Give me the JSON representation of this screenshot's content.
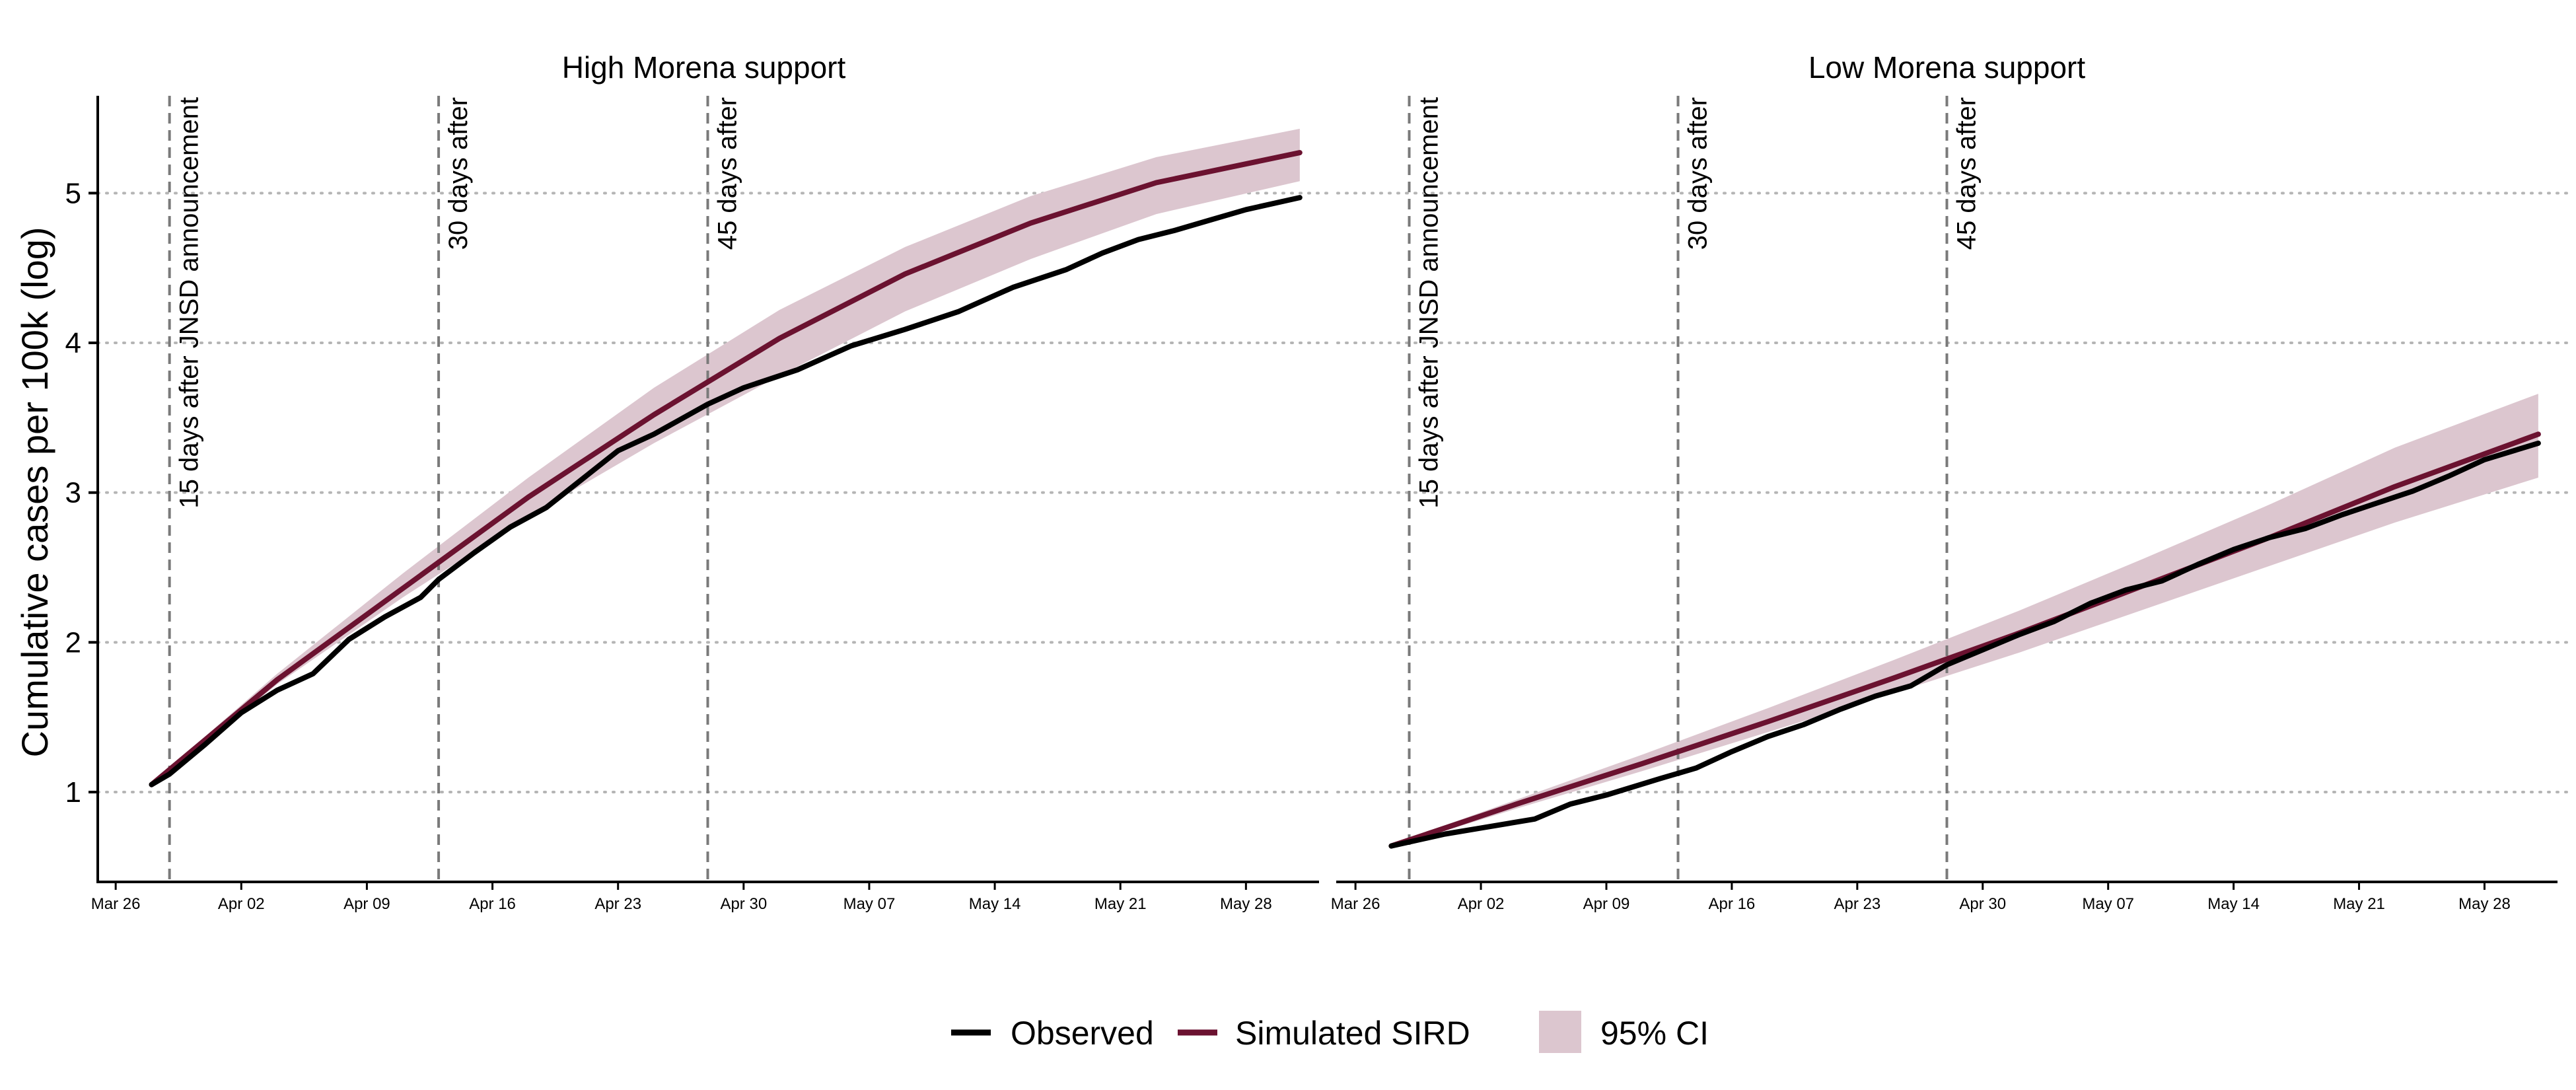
{
  "chart_data": {
    "type": "line",
    "ylabel": "Cumulative cases per 100k (log)",
    "y_scale": "log",
    "y_ticks": [
      "1",
      "2",
      "3",
      "4",
      "5"
    ],
    "ylim": [
      0.4,
      5.65
    ],
    "x_ticks": [
      "Mar 26",
      "Apr 02",
      "Apr 09",
      "Apr 16",
      "Apr 23",
      "Apr 30",
      "May 07",
      "May 14",
      "May 21",
      "May 28"
    ],
    "xlim": [
      "2020-03-25",
      "2020-06-01"
    ],
    "grid": "horizontal dotted",
    "legend_position": "bottom",
    "legend": [
      {
        "label": "Observed",
        "color": "#000000",
        "kind": "line"
      },
      {
        "label": "Simulated SIRD",
        "color": "#6b1230",
        "kind": "line"
      },
      {
        "label": "95% CI",
        "color": "#dcc6cf",
        "kind": "fill"
      }
    ],
    "vlines": [
      {
        "date": "2020-03-29",
        "label": "15 days after JNSD announcement"
      },
      {
        "date": "2020-04-13",
        "label": "30 days after"
      },
      {
        "date": "2020-04-28",
        "label": "45 days after"
      }
    ],
    "panels": [
      {
        "title": "High Morena support",
        "observed": [
          [
            "2020-03-28",
            1.05
          ],
          [
            "2020-03-29",
            1.12
          ],
          [
            "2020-03-31",
            1.32
          ],
          [
            "2020-04-02",
            1.53
          ],
          [
            "2020-04-04",
            1.68
          ],
          [
            "2020-04-06",
            1.79
          ],
          [
            "2020-04-08",
            2.02
          ],
          [
            "2020-04-10",
            2.17
          ],
          [
            "2020-04-12",
            2.3
          ],
          [
            "2020-04-13",
            2.42
          ],
          [
            "2020-04-15",
            2.6
          ],
          [
            "2020-04-17",
            2.77
          ],
          [
            "2020-04-19",
            2.9
          ],
          [
            "2020-04-21",
            3.09
          ],
          [
            "2020-04-23",
            3.28
          ],
          [
            "2020-04-25",
            3.39
          ],
          [
            "2020-04-28",
            3.59
          ],
          [
            "2020-04-30",
            3.7
          ],
          [
            "2020-05-03",
            3.82
          ],
          [
            "2020-05-06",
            3.98
          ],
          [
            "2020-05-09",
            4.09
          ],
          [
            "2020-05-12",
            4.21
          ],
          [
            "2020-05-15",
            4.37
          ],
          [
            "2020-05-18",
            4.49
          ],
          [
            "2020-05-20",
            4.6
          ],
          [
            "2020-05-22",
            4.69
          ],
          [
            "2020-05-24",
            4.75
          ],
          [
            "2020-05-26",
            4.82
          ],
          [
            "2020-05-28",
            4.89
          ],
          [
            "2020-05-31",
            4.97
          ]
        ],
        "simulated": [
          [
            "2020-03-28",
            1.05
          ],
          [
            "2020-04-04",
            1.75
          ],
          [
            "2020-04-11",
            2.36
          ],
          [
            "2020-04-18",
            2.97
          ],
          [
            "2020-04-25",
            3.52
          ],
          [
            "2020-05-02",
            4.03
          ],
          [
            "2020-05-09",
            4.46
          ],
          [
            "2020-05-16",
            4.8
          ],
          [
            "2020-05-23",
            5.07
          ],
          [
            "2020-05-31",
            5.27
          ]
        ],
        "ci_lower": [
          [
            "2020-03-28",
            1.04
          ],
          [
            "2020-04-04",
            1.72
          ],
          [
            "2020-04-11",
            2.3
          ],
          [
            "2020-04-18",
            2.84
          ],
          [
            "2020-04-25",
            3.33
          ],
          [
            "2020-05-02",
            3.78
          ],
          [
            "2020-05-09",
            4.21
          ],
          [
            "2020-05-16",
            4.56
          ],
          [
            "2020-05-23",
            4.86
          ],
          [
            "2020-05-31",
            5.08
          ]
        ],
        "ci_upper": [
          [
            "2020-03-28",
            1.06
          ],
          [
            "2020-04-04",
            1.79
          ],
          [
            "2020-04-11",
            2.46
          ],
          [
            "2020-04-18",
            3.1
          ],
          [
            "2020-04-25",
            3.7
          ],
          [
            "2020-05-02",
            4.22
          ],
          [
            "2020-05-09",
            4.64
          ],
          [
            "2020-05-16",
            4.98
          ],
          [
            "2020-05-23",
            5.24
          ],
          [
            "2020-05-31",
            5.43
          ]
        ]
      },
      {
        "title": "Low Morena support",
        "observed": [
          [
            "2020-03-28",
            0.64
          ],
          [
            "2020-03-31",
            0.72
          ],
          [
            "2020-04-02",
            0.76
          ],
          [
            "2020-04-05",
            0.82
          ],
          [
            "2020-04-07",
            0.92
          ],
          [
            "2020-04-09",
            0.98
          ],
          [
            "2020-04-12",
            1.09
          ],
          [
            "2020-04-14",
            1.16
          ],
          [
            "2020-04-16",
            1.27
          ],
          [
            "2020-04-18",
            1.37
          ],
          [
            "2020-04-20",
            1.45
          ],
          [
            "2020-04-22",
            1.55
          ],
          [
            "2020-04-24",
            1.64
          ],
          [
            "2020-04-26",
            1.71
          ],
          [
            "2020-04-28",
            1.85
          ],
          [
            "2020-04-30",
            1.95
          ],
          [
            "2020-05-02",
            2.05
          ],
          [
            "2020-05-04",
            2.14
          ],
          [
            "2020-05-06",
            2.26
          ],
          [
            "2020-05-08",
            2.35
          ],
          [
            "2020-05-10",
            2.41
          ],
          [
            "2020-05-12",
            2.52
          ],
          [
            "2020-05-14",
            2.62
          ],
          [
            "2020-05-16",
            2.7
          ],
          [
            "2020-05-18",
            2.76
          ],
          [
            "2020-05-20",
            2.85
          ],
          [
            "2020-05-22",
            2.93
          ],
          [
            "2020-05-24",
            3.01
          ],
          [
            "2020-05-26",
            3.11
          ],
          [
            "2020-05-28",
            3.22
          ],
          [
            "2020-05-31",
            3.33
          ]
        ],
        "simulated": [
          [
            "2020-03-28",
            0.64
          ],
          [
            "2020-04-04",
            0.92
          ],
          [
            "2020-04-11",
            1.19
          ],
          [
            "2020-04-18",
            1.47
          ],
          [
            "2020-04-25",
            1.76
          ],
          [
            "2020-05-02",
            2.06
          ],
          [
            "2020-05-09",
            2.38
          ],
          [
            "2020-05-16",
            2.7
          ],
          [
            "2020-05-23",
            3.04
          ],
          [
            "2020-05-31",
            3.39
          ]
        ],
        "ci_lower": [
          [
            "2020-03-28",
            0.63
          ],
          [
            "2020-04-04",
            0.89
          ],
          [
            "2020-04-11",
            1.14
          ],
          [
            "2020-04-18",
            1.4
          ],
          [
            "2020-04-25",
            1.66
          ],
          [
            "2020-05-02",
            1.93
          ],
          [
            "2020-05-09",
            2.22
          ],
          [
            "2020-05-16",
            2.51
          ],
          [
            "2020-05-23",
            2.8
          ],
          [
            "2020-05-31",
            3.1
          ]
        ],
        "ci_upper": [
          [
            "2020-03-28",
            0.65
          ],
          [
            "2020-04-04",
            0.95
          ],
          [
            "2020-04-11",
            1.25
          ],
          [
            "2020-04-18",
            1.56
          ],
          [
            "2020-04-25",
            1.88
          ],
          [
            "2020-05-02",
            2.21
          ],
          [
            "2020-05-09",
            2.56
          ],
          [
            "2020-05-16",
            2.92
          ],
          [
            "2020-05-23",
            3.3
          ],
          [
            "2020-05-31",
            3.66
          ]
        ]
      }
    ]
  }
}
